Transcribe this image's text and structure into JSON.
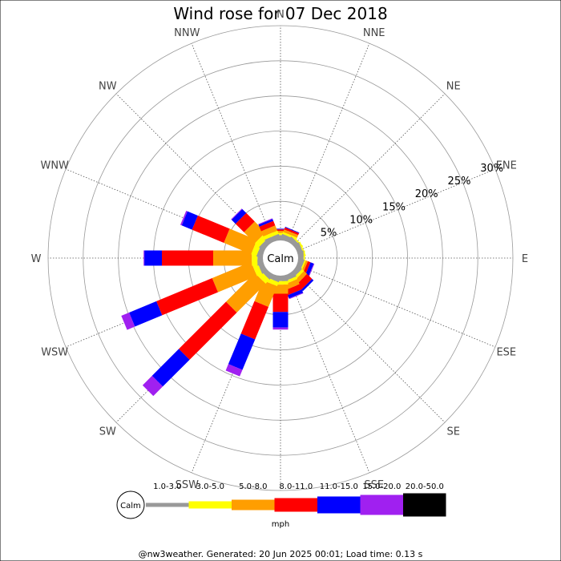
{
  "chart_data": {
    "type": "wind_rose",
    "title": "Wind rose for 07 Dec 2018",
    "directions": [
      "N",
      "NNE",
      "NE",
      "ENE",
      "E",
      "ESE",
      "SE",
      "SSE",
      "S",
      "SSW",
      "SW",
      "WSW",
      "W",
      "WNW",
      "NW",
      "NNW"
    ],
    "radial_ticks": [
      "5%",
      "10%",
      "15%",
      "20%",
      "25%",
      "30%"
    ],
    "radial_tick_values": [
      5,
      10,
      15,
      20,
      25,
      30
    ],
    "radial_max": 30,
    "calm_label": "Calm",
    "unit": "mph",
    "speed_bins": [
      {
        "range": "1.0-3.0",
        "color": "#999999"
      },
      {
        "range": "3.0-5.0",
        "color": "#ffff00"
      },
      {
        "range": "5.0-8.0",
        "color": "#ff9e00"
      },
      {
        "range": "8.0-11.0",
        "color": "#ff0000"
      },
      {
        "range": "11.0-15.0",
        "color": "#0000ff"
      },
      {
        "range": "15.0-20.0",
        "color": "#a020f0"
      },
      {
        "range": "20.0-50.0",
        "color": "#000000"
      }
    ],
    "series": [
      {
        "direction": "N",
        "cumulative": [
          0.2,
          0.5,
          0.8,
          1.0,
          1.1,
          1.1,
          1.1
        ]
      },
      {
        "direction": "NNE",
        "cumulative": [
          0.2,
          0.5,
          0.9,
          1.2,
          1.3,
          1.3,
          1.3
        ]
      },
      {
        "direction": "NE",
        "cumulative": [
          0.2,
          0.4,
          0.4,
          0.4,
          0.4,
          0.4,
          0.4
        ]
      },
      {
        "direction": "ENE",
        "cumulative": [
          0.2,
          0.4,
          0.4,
          0.4,
          0.4,
          0.4,
          0.4
        ]
      },
      {
        "direction": "E",
        "cumulative": [
          0.2,
          0.4,
          0.4,
          0.4,
          0.4,
          0.4,
          0.4
        ]
      },
      {
        "direction": "ESE",
        "cumulative": [
          0.2,
          0.4,
          0.7,
          1.1,
          1.6,
          1.7,
          1.7
        ]
      },
      {
        "direction": "SE",
        "cumulative": [
          0.2,
          0.6,
          1.2,
          2.2,
          2.5,
          2.5,
          2.5
        ]
      },
      {
        "direction": "SSE",
        "cumulative": [
          0.2,
          0.6,
          1.4,
          2.2,
          2.7,
          2.8,
          2.8
        ]
      },
      {
        "direction": "S",
        "cumulative": [
          0.2,
          0.7,
          2.0,
          4.6,
          6.8,
          7.1,
          7.1
        ]
      },
      {
        "direction": "SSW",
        "cumulative": [
          0.2,
          0.8,
          4.0,
          9.0,
          13.7,
          14.7,
          14.7
        ]
      },
      {
        "direction": "SW",
        "cumulative": [
          0.2,
          1.0,
          6.8,
          16.3,
          21.7,
          23.6,
          23.6
        ]
      },
      {
        "direction": "WSW",
        "cumulative": [
          0.2,
          1.0,
          7.0,
          15.6,
          19.8,
          21.0,
          21.0
        ]
      },
      {
        "direction": "W",
        "cumulative": [
          0.2,
          1.0,
          6.5,
          13.8,
          16.3,
          16.4,
          16.4
        ]
      },
      {
        "direction": "WNW",
        "cumulative": [
          0.2,
          1.0,
          5.2,
          10.1,
          11.7,
          11.9,
          11.9
        ]
      },
      {
        "direction": "NW",
        "cumulative": [
          0.2,
          1.0,
          3.2,
          4.9,
          5.7,
          5.8,
          5.8
        ]
      },
      {
        "direction": "NNW",
        "cumulative": [
          0.2,
          0.7,
          1.5,
          2.2,
          2.5,
          2.6,
          2.6
        ]
      }
    ]
  },
  "footer": {
    "text": "@nw3weather. Generated: 20 Jun 2025 00:01; Load time: 0.13 s"
  }
}
